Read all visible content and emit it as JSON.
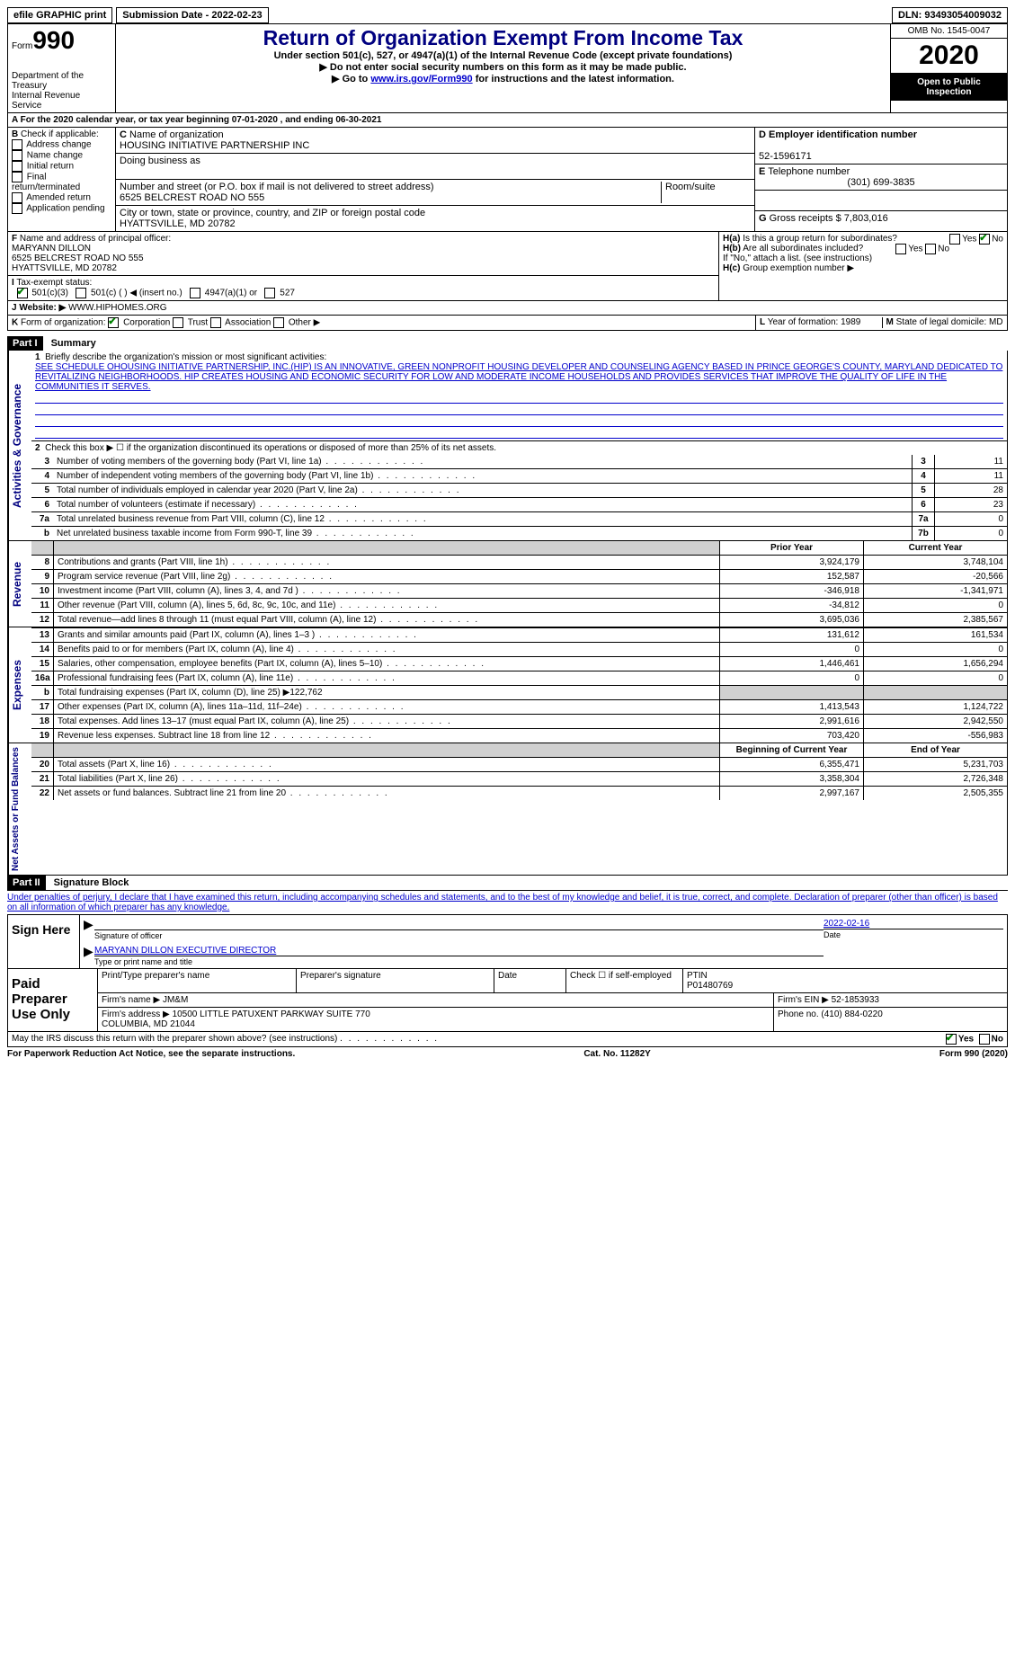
{
  "topbar": {
    "efile": "efile GRAPHIC print",
    "submission_label": "Submission Date - ",
    "submission_date": "2022-02-23",
    "dln_label": "DLN: ",
    "dln": "93493054009032"
  },
  "header": {
    "form_label": "Form",
    "form_num": "990",
    "dept1": "Department of the Treasury",
    "dept2": "Internal Revenue Service",
    "title": "Return of Organization Exempt From Income Tax",
    "subtitle": "Under section 501(c), 527, or 4947(a)(1) of the Internal Revenue Code (except private foundations)",
    "note1": "▶ Do not enter social security numbers on this form as it may be made public.",
    "note2_pre": "▶ Go to ",
    "note2_link": "www.irs.gov/Form990",
    "note2_post": " for instructions and the latest information.",
    "omb": "OMB No. 1545-0047",
    "year": "2020",
    "open": "Open to Public Inspection"
  },
  "a_line": "For the 2020 calendar year, or tax year beginning 07-01-2020   , and ending 06-30-2021",
  "b": {
    "label": "Check if applicable:",
    "opts": [
      "Address change",
      "Name change",
      "Initial return",
      "Final return/terminated",
      "Amended return",
      "Application pending"
    ]
  },
  "c": {
    "label": "Name of organization",
    "name": "HOUSING INITIATIVE PARTNERSHIP INC",
    "dba_label": "Doing business as",
    "dba": "",
    "street_label": "Number and street (or P.O. box if mail is not delivered to street address)",
    "street": "6525 BELCREST ROAD NO 555",
    "room_label": "Room/suite",
    "city_label": "City or town, state or province, country, and ZIP or foreign postal code",
    "city": "HYATTSVILLE, MD  20782"
  },
  "d": {
    "label": "Employer identification number",
    "val": "52-1596171"
  },
  "e": {
    "label": "Telephone number",
    "val": "(301) 699-3835"
  },
  "g": {
    "label": "Gross receipts $",
    "val": "7,803,016"
  },
  "f": {
    "label": "Name and address of principal officer:",
    "name": "MARYANN DILLON",
    "addr1": "6525 BELCREST ROAD NO 555",
    "addr2": "HYATTSVILLE, MD  20782"
  },
  "h": {
    "a_label": "Is this a group return for subordinates?",
    "b_label": "Are all subordinates included?",
    "b_note": "If \"No,\" attach a list. (see instructions)",
    "c_label": "Group exemption number ▶",
    "yes": "Yes",
    "no": "No"
  },
  "i": {
    "label": "Tax-exempt status:",
    "opt1": "501(c)(3)",
    "opt2": "501(c) (  ) ◀ (insert no.)",
    "opt3": "4947(a)(1) or",
    "opt4": "527"
  },
  "j": {
    "label": "Website: ▶",
    "val": "WWW.HIPHOMES.ORG"
  },
  "k": {
    "label": "Form of organization:",
    "opts": [
      "Corporation",
      "Trust",
      "Association",
      "Other ▶"
    ]
  },
  "l": {
    "label": "Year of formation:",
    "val": "1989"
  },
  "m": {
    "label": "State of legal domicile:",
    "val": "MD"
  },
  "part1": {
    "header": "Part I",
    "title": "Summary",
    "vert1": "Activities & Governance",
    "vert2": "Revenue",
    "vert3": "Expenses",
    "vert4": "Net Assets or Fund Balances",
    "line1_label": "Briefly describe the organization's mission or most significant activities:",
    "line1_text": "SEE SCHEDULE OHOUSING INITIATIVE PARTNERSHIP, INC.(HIP) IS AN INNOVATIVE, GREEN NONPROFIT HOUSING DEVELOPER AND COUNSELING AGENCY BASED IN PRINCE GEORGE'S COUNTY, MARYLAND DEDICATED TO REVITALIZING NEIGHBORHOODS. HIP CREATES HOUSING AND ECONOMIC SECURITY FOR LOW AND MODERATE INCOME HOUSEHOLDS AND PROVIDES SERVICES THAT IMPROVE THE QUALITY OF LIFE IN THE COMMUNITIES IT SERVES.",
    "line2": "Check this box ▶ ☐ if the organization discontinued its operations or disposed of more than 25% of its net assets.",
    "gov_rows": [
      {
        "n": "3",
        "t": "Number of voting members of the governing body (Part VI, line 1a)",
        "ln": "3",
        "v": "11"
      },
      {
        "n": "4",
        "t": "Number of independent voting members of the governing body (Part VI, line 1b)",
        "ln": "4",
        "v": "11"
      },
      {
        "n": "5",
        "t": "Total number of individuals employed in calendar year 2020 (Part V, line 2a)",
        "ln": "5",
        "v": "28"
      },
      {
        "n": "6",
        "t": "Total number of volunteers (estimate if necessary)",
        "ln": "6",
        "v": "23"
      },
      {
        "n": "7a",
        "t": "Total unrelated business revenue from Part VIII, column (C), line 12",
        "ln": "7a",
        "v": "0"
      },
      {
        "n": "b",
        "t": "Net unrelated business taxable income from Form 990-T, line 39",
        "ln": "7b",
        "v": "0"
      }
    ],
    "col_prior": "Prior Year",
    "col_current": "Current Year",
    "rev_rows": [
      {
        "n": "8",
        "t": "Contributions and grants (Part VIII, line 1h)",
        "p": "3,924,179",
        "c": "3,748,104"
      },
      {
        "n": "9",
        "t": "Program service revenue (Part VIII, line 2g)",
        "p": "152,587",
        "c": "-20,566"
      },
      {
        "n": "10",
        "t": "Investment income (Part VIII, column (A), lines 3, 4, and 7d )",
        "p": "-346,918",
        "c": "-1,341,971"
      },
      {
        "n": "11",
        "t": "Other revenue (Part VIII, column (A), lines 5, 6d, 8c, 9c, 10c, and 11e)",
        "p": "-34,812",
        "c": "0"
      },
      {
        "n": "12",
        "t": "Total revenue—add lines 8 through 11 (must equal Part VIII, column (A), line 12)",
        "p": "3,695,036",
        "c": "2,385,567"
      }
    ],
    "exp_rows": [
      {
        "n": "13",
        "t": "Grants and similar amounts paid (Part IX, column (A), lines 1–3 )",
        "p": "131,612",
        "c": "161,534"
      },
      {
        "n": "14",
        "t": "Benefits paid to or for members (Part IX, column (A), line 4)",
        "p": "0",
        "c": "0"
      },
      {
        "n": "15",
        "t": "Salaries, other compensation, employee benefits (Part IX, column (A), lines 5–10)",
        "p": "1,446,461",
        "c": "1,656,294"
      },
      {
        "n": "16a",
        "t": "Professional fundraising fees (Part IX, column (A), line 11e)",
        "p": "0",
        "c": "0"
      },
      {
        "n": "b",
        "t": "Total fundraising expenses (Part IX, column (D), line 25) ▶122,762",
        "p": "",
        "c": "",
        "grey": true
      },
      {
        "n": "17",
        "t": "Other expenses (Part IX, column (A), lines 11a–11d, 11f–24e)",
        "p": "1,413,543",
        "c": "1,124,722"
      },
      {
        "n": "18",
        "t": "Total expenses. Add lines 13–17 (must equal Part IX, column (A), line 25)",
        "p": "2,991,616",
        "c": "2,942,550"
      },
      {
        "n": "19",
        "t": "Revenue less expenses. Subtract line 18 from line 12",
        "p": "703,420",
        "c": "-556,983"
      }
    ],
    "col_begin": "Beginning of Current Year",
    "col_end": "End of Year",
    "net_rows": [
      {
        "n": "20",
        "t": "Total assets (Part X, line 16)",
        "p": "6,355,471",
        "c": "5,231,703"
      },
      {
        "n": "21",
        "t": "Total liabilities (Part X, line 26)",
        "p": "3,358,304",
        "c": "2,726,348"
      },
      {
        "n": "22",
        "t": "Net assets or fund balances. Subtract line 21 from line 20",
        "p": "2,997,167",
        "c": "2,505,355"
      }
    ]
  },
  "part2": {
    "header": "Part II",
    "title": "Signature Block",
    "perjury": "Under penalties of perjury, I declare that I have examined this return, including accompanying schedules and statements, and to the best of my knowledge and belief, it is true, correct, and complete. Declaration of preparer (other than officer) is based on all information of which preparer has any knowledge.",
    "sign_here": "Sign Here",
    "sig_officer": "Signature of officer",
    "date": "Date",
    "sig_date": "2022-02-16",
    "name_title": "MARYANN DILLON  EXECUTIVE DIRECTOR",
    "name_title_label": "Type or print name and title",
    "paid_prep": "Paid Preparer Use Only",
    "prep_name_label": "Print/Type preparer's name",
    "prep_sig_label": "Preparer's signature",
    "date_label": "Date",
    "self_emp": "Check ☐ if self-employed",
    "ptin_label": "PTIN",
    "ptin": "P01480769",
    "firm_name_label": "Firm's name   ▶",
    "firm_name": "JM&M",
    "firm_ein_label": "Firm's EIN ▶",
    "firm_ein": "52-1853933",
    "firm_addr_label": "Firm's address ▶",
    "firm_addr": "10500 LITTLE PATUXENT PARKWAY SUITE 770\nCOLUMBIA, MD  21044",
    "phone_label": "Phone no.",
    "phone": "(410) 884-0220",
    "discuss": "May the IRS discuss this return with the preparer shown above? (see instructions)",
    "yes": "Yes",
    "no": "No"
  },
  "footer": {
    "paperwork": "For Paperwork Reduction Act Notice, see the separate instructions.",
    "cat": "Cat. No. 11282Y",
    "form": "Form 990 (2020)"
  }
}
